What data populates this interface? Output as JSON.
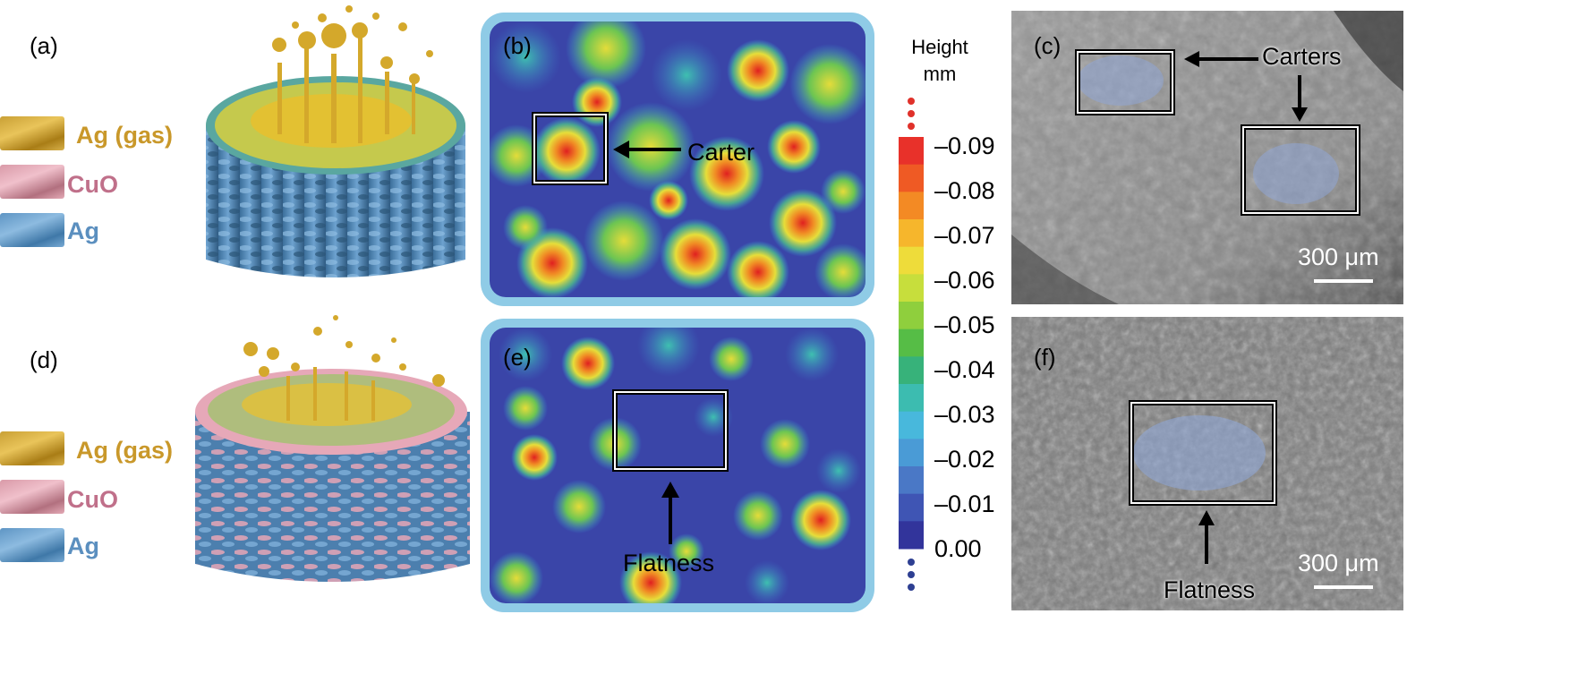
{
  "panels": {
    "a": "(a)",
    "b": "(b)",
    "c": "(c)",
    "d": "(d)",
    "e": "(e)",
    "f": "(f)"
  },
  "legend": {
    "items": [
      {
        "label": "Ag (gas)",
        "color": "#c9a035"
      },
      {
        "label": "CuO",
        "color": "#c0708a"
      },
      {
        "label": "Ag",
        "color": "#5b8fbf"
      }
    ]
  },
  "annotations": {
    "carter": "Carter",
    "carters": "Carters",
    "flatness_e": "Flatness",
    "flatness_f": "Flatness"
  },
  "colorbar": {
    "title_line1": "Height",
    "title_line2": "mm",
    "ticks": [
      "–0.09",
      "–0.08",
      "–0.07",
      "–0.06",
      "–0.05",
      "–0.04",
      "–0.03",
      "–0.02",
      "–0.01",
      "0.00"
    ],
    "colors": [
      "#e8312a",
      "#ef5a24",
      "#f38a24",
      "#f6b62c",
      "#eedc3a",
      "#c7de3c",
      "#8fcf3d",
      "#56bd46",
      "#37b27a",
      "#3cbcb0",
      "#48b8dc",
      "#4a9bd6",
      "#4a78c6",
      "#3f55b4",
      "#32349b"
    ]
  },
  "scalebars": {
    "c": "300 μm",
    "f": "300 μm"
  }
}
